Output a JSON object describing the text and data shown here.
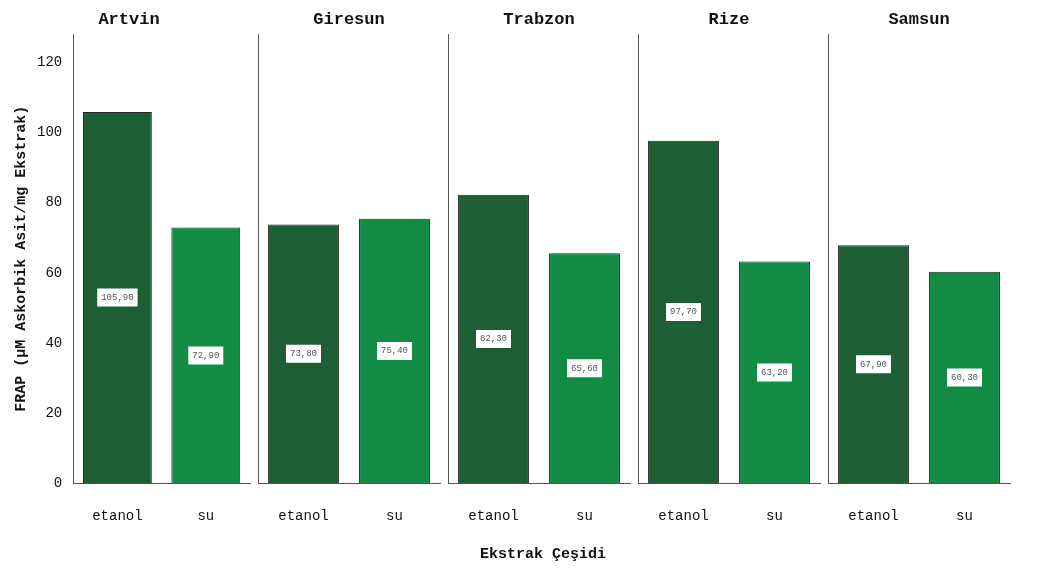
{
  "chart_data": [
    {
      "type": "bar",
      "title": "Artvin",
      "ylabel": "FRAP (µM Askorbik Asit/mg Ekstrak)",
      "categories": [
        "etanol",
        "su"
      ],
      "values": [
        105.9,
        72.9
      ],
      "colors": [
        "#1d5e34",
        "#128c45"
      ],
      "value_labels": [
        "105,90",
        "72,90"
      ],
      "ylim": [
        0,
        128
      ],
      "yticks": [
        0,
        20,
        40,
        60,
        80,
        100,
        120
      ],
      "grid": false
    },
    {
      "type": "bar",
      "title": "Giresun",
      "categories": [
        "etanol",
        "su"
      ],
      "values": [
        73.8,
        75.4
      ],
      "colors": [
        "#1d5e34",
        "#128c45"
      ],
      "value_labels": [
        "73,80",
        "75,40"
      ],
      "ylim": [
        0,
        128
      ],
      "yticks": [
        0,
        20,
        40,
        60,
        80,
        100,
        120
      ],
      "tick_labels": "x",
      "grid": false
    },
    {
      "type": "bar",
      "title": "Trabzon",
      "xlabel": "Ekstrak Çeşidi",
      "categories": [
        "etanol",
        "su"
      ],
      "values": [
        82.3,
        65.6
      ],
      "colors": [
        "#1d5e34",
        "#128c45"
      ],
      "value_labels": [
        "82,30",
        "65,60"
      ],
      "ylim": [
        0,
        128
      ],
      "yticks": [
        0,
        20,
        40,
        60,
        80,
        100,
        120
      ],
      "tick_labels": "x",
      "grid": false
    },
    {
      "type": "bar",
      "title": "Rize",
      "categories": [
        "etanol",
        "su"
      ],
      "values": [
        97.7,
        63.2
      ],
      "colors": [
        "#1d5e34",
        "#128c45"
      ],
      "value_labels": [
        "97,70",
        "63,20"
      ],
      "ylim": [
        0,
        128
      ],
      "yticks": [
        0,
        20,
        40,
        60,
        80,
        100,
        120
      ],
      "tick_labels": "x",
      "grid": false
    },
    {
      "type": "bar",
      "title": "Samsun",
      "categories": [
        "etanol",
        "su"
      ],
      "values": [
        67.9,
        60.3
      ],
      "colors": [
        "#1d5e34",
        "#128c45"
      ],
      "value_labels": [
        "67,90",
        "60,30"
      ],
      "ylim": [
        0,
        128
      ],
      "yticks": [
        0,
        20,
        40,
        60,
        80,
        100,
        120
      ],
      "tick_labels": "x",
      "grid": false
    }
  ]
}
